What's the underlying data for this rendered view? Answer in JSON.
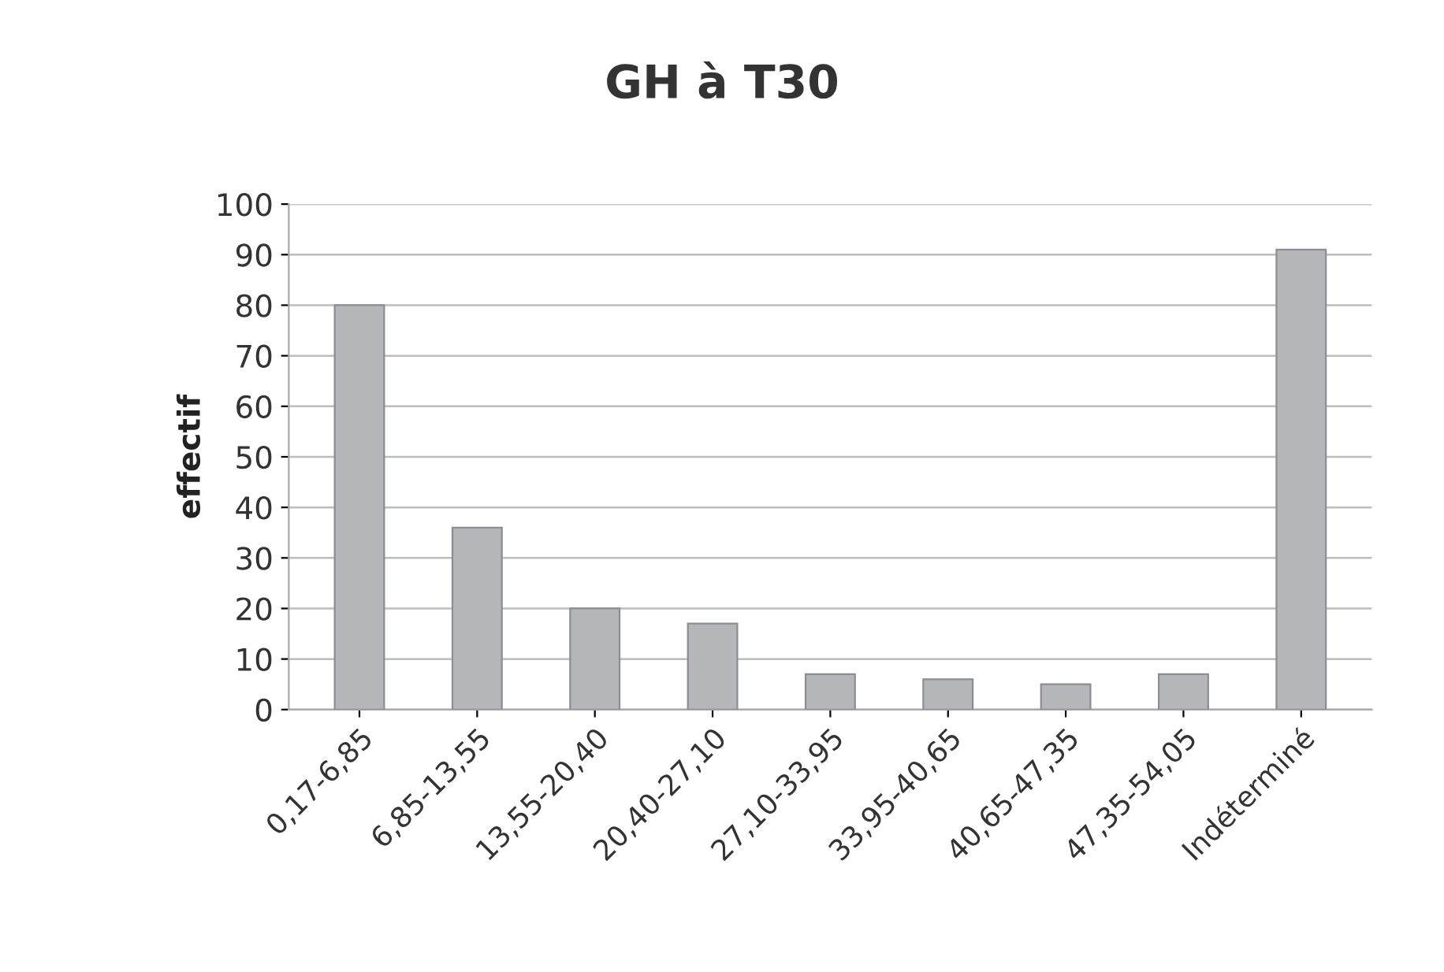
{
  "chart_data": {
    "type": "bar",
    "title": "GH à T30",
    "ylabel": "effectif",
    "categories": [
      "0,17-6,85",
      "6,85-13,55",
      "13,55-20,40",
      "20,40-27,10",
      "27,10-33,95",
      "33,95-40,65",
      "40,65-47,35",
      "47,35-54,05",
      "Indéterminé"
    ],
    "values": [
      80,
      36,
      20,
      17,
      7,
      6,
      5,
      7,
      91
    ],
    "color": "#b4b6ba",
    "ylim": [
      0,
      100
    ],
    "yticks": [
      0,
      10,
      20,
      30,
      40,
      50,
      60,
      70,
      80,
      90,
      100
    ],
    "grid": "y"
  }
}
